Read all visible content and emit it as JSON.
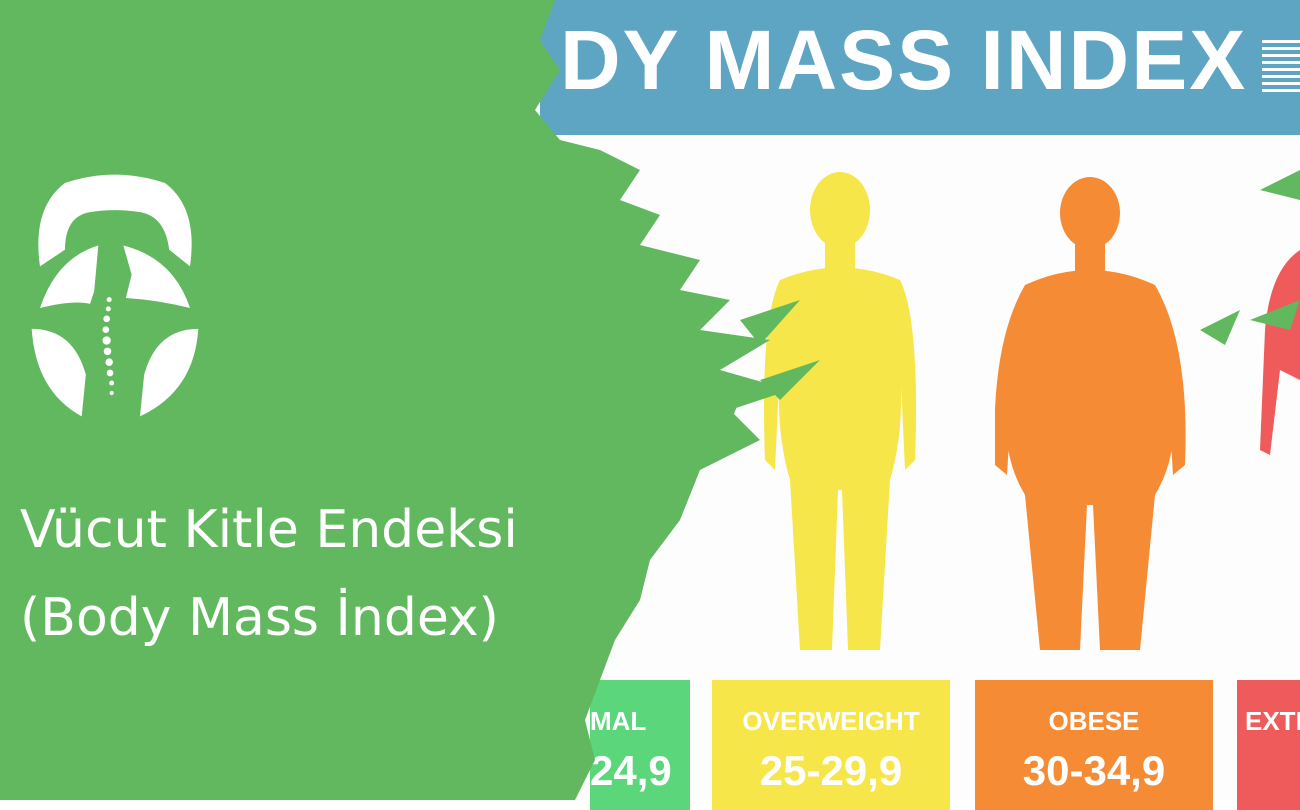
{
  "colors": {
    "green": "#62b85f",
    "band": "#5ea4c3",
    "normal": "#5bd67a",
    "overweight": "#f7e64a",
    "obese": "#f58b35",
    "extreme": "#ef5b5b"
  },
  "banner": {
    "title": "DY MASS INDEX"
  },
  "categories": [
    {
      "label": "MAL",
      "range": "24,9"
    },
    {
      "label": "OVERWEIGHT",
      "range": "25-29,9"
    },
    {
      "label": "OBESE",
      "range": "30-34,9"
    },
    {
      "label": "EXTR",
      "range": ""
    }
  ],
  "logo": {
    "icon": "kettlebell-spine-leaves-logo"
  },
  "heading": {
    "line1": "Vücut Kitle Endeksi",
    "line2": "(Body Mass İndex)"
  }
}
